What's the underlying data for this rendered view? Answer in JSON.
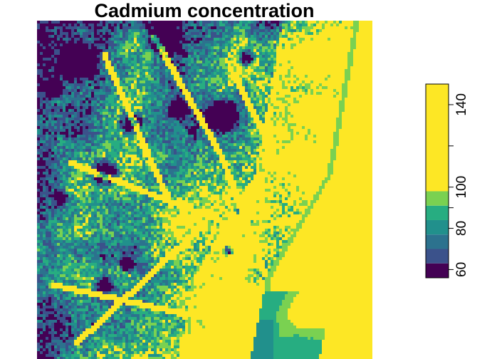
{
  "chart_data": {
    "type": "heatmap",
    "title": "Cadmium concentration",
    "xlabel": "",
    "ylabel": "",
    "legend": {
      "placement": "right",
      "orientation": "vertical",
      "range": [
        56,
        150
      ],
      "ticks": [
        {
          "value": 60,
          "label": "60"
        },
        {
          "value": 80,
          "label": "80"
        },
        {
          "value": 90,
          "label": ""
        },
        {
          "value": 100,
          "label": "100"
        },
        {
          "value": 120,
          "label": ""
        },
        {
          "value": 140,
          "label": "140"
        }
      ],
      "bins": [
        {
          "from": 56,
          "to": 63,
          "color": "#440154"
        },
        {
          "from": 63,
          "to": 70,
          "color": "#3b528b"
        },
        {
          "from": 70,
          "to": 77,
          "color": "#2c728e"
        },
        {
          "from": 77,
          "to": 84,
          "color": "#21908c"
        },
        {
          "from": 84,
          "to": 91,
          "color": "#27ad81"
        },
        {
          "from": 91,
          "to": 98,
          "color": "#7ad151"
        },
        {
          "from": 98,
          "to": 150,
          "color": "#fde725"
        }
      ]
    },
    "grid": false
  }
}
